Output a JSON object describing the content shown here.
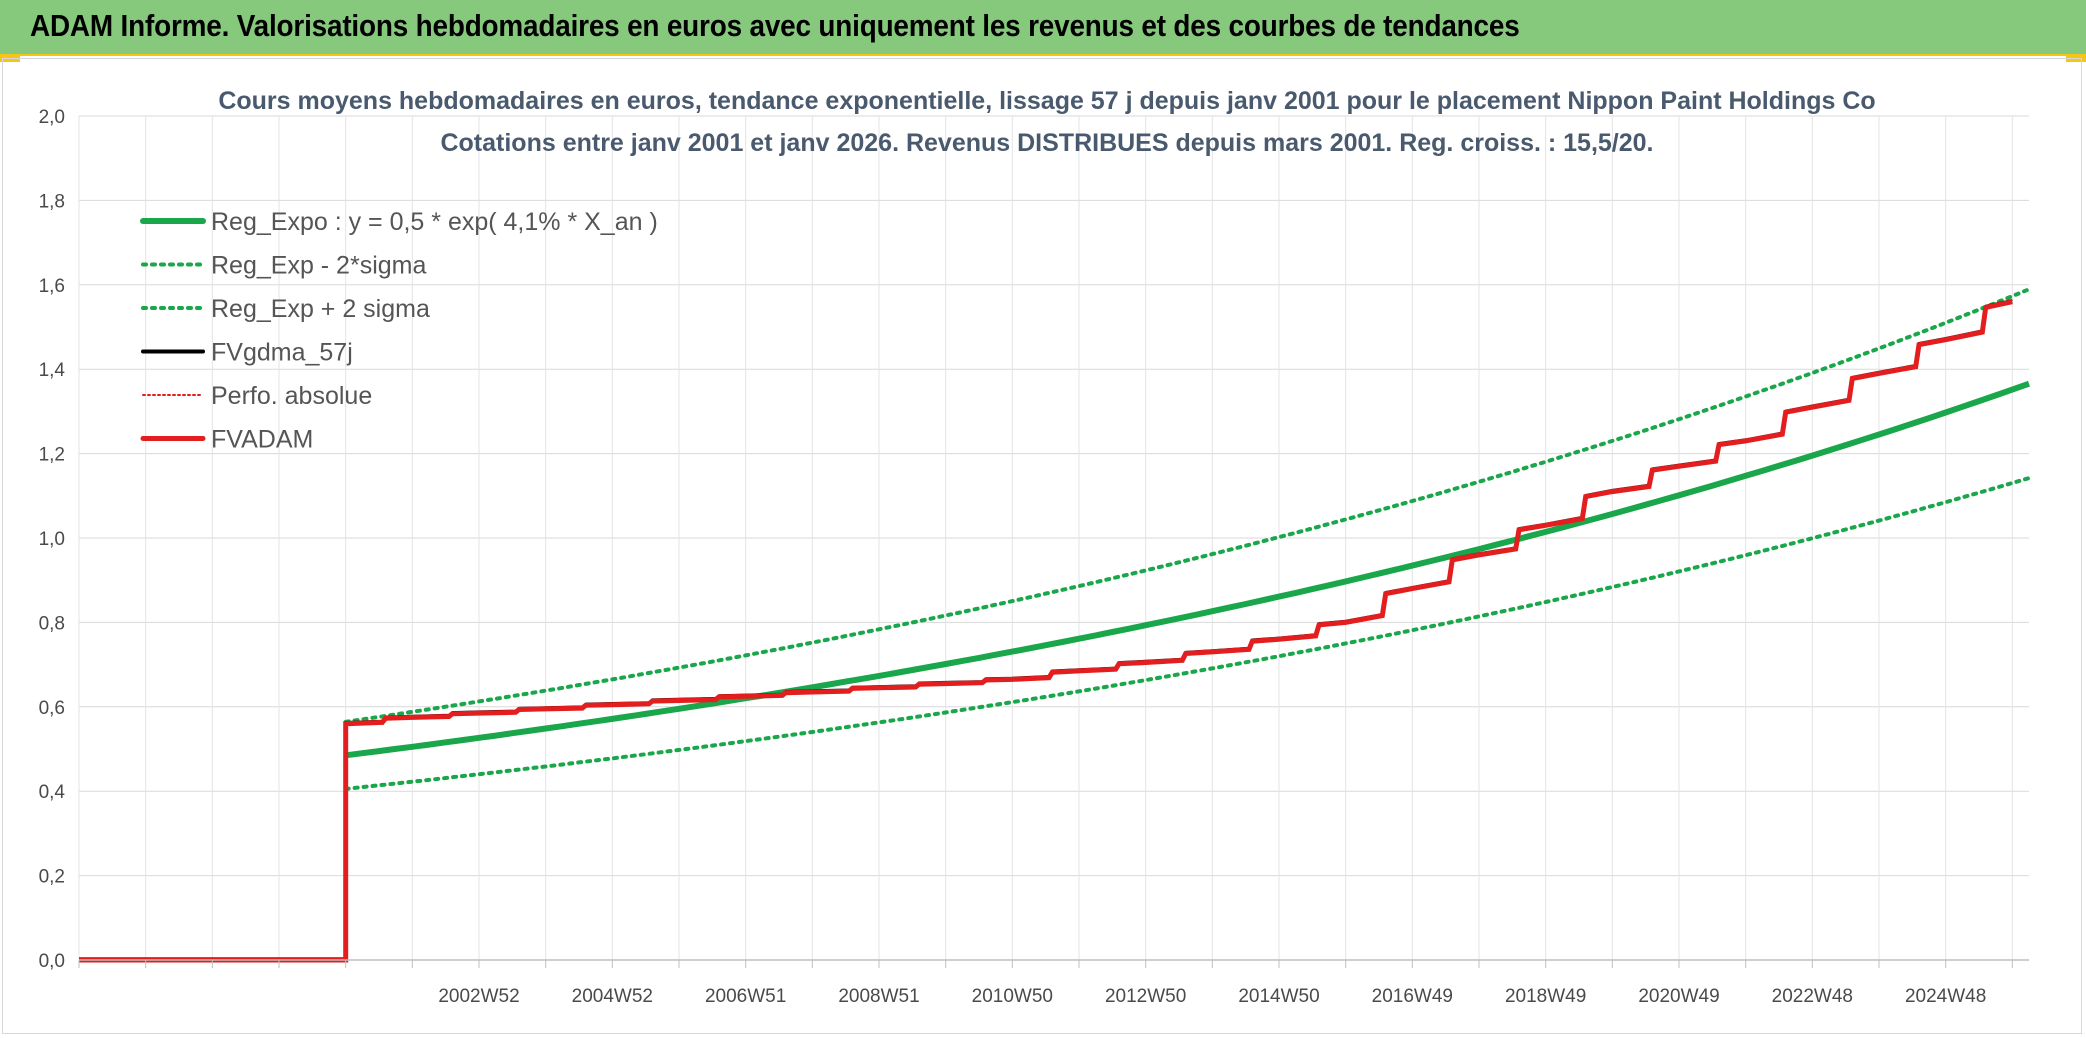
{
  "header": {
    "title": "ADAM Informe. Valorisations hebdomadaires en euros avec uniquement les revenus et des courbes de tendances"
  },
  "colors": {
    "banner": "#86c97d",
    "accent": "#f5c518",
    "green": "#1aa64a",
    "black": "#000000",
    "red": "#e41e1e"
  },
  "chart_data": {
    "type": "line",
    "title_line1": "Cours moyens hebdomadaires en euros, tendance exponentielle, lissage 57 j depuis janv 2001 pour le placement Nippon Paint Holdings Co",
    "title_line2": "Cotations entre janv 2001 et janv 2026. Revenus DISTRIBUES depuis mars 2001. Reg. croiss. : 15,5/20.",
    "x_range_years": [
      1997,
      2026.25
    ],
    "y_range": [
      0,
      2.0
    ],
    "y_ticks": [
      "0,0",
      "0,2",
      "0,4",
      "0,6",
      "0,8",
      "1,0",
      "1,2",
      "1,4",
      "1,6",
      "1,8",
      "2,0"
    ],
    "x_ticks": [
      {
        "label": "2002W52",
        "year": 2003.0
      },
      {
        "label": "2004W52",
        "year": 2005.0
      },
      {
        "label": "2006W51",
        "year": 2007.0
      },
      {
        "label": "2008W51",
        "year": 2009.0
      },
      {
        "label": "2010W50",
        "year": 2011.0
      },
      {
        "label": "2012W50",
        "year": 2013.0
      },
      {
        "label": "2014W50",
        "year": 2015.0
      },
      {
        "label": "2016W49",
        "year": 2017.0
      },
      {
        "label": "2018W49",
        "year": 2019.0
      },
      {
        "label": "2020W49",
        "year": 2021.0
      },
      {
        "label": "2022W48",
        "year": 2023.0
      },
      {
        "label": "2024W48",
        "year": 2025.0
      }
    ],
    "regression": {
      "start_year": 2001.0,
      "end_year": 2026.25,
      "a": 0.485,
      "rate": 0.041,
      "sigma_band": 0.078
    },
    "legend": [
      {
        "label": "Reg_Expo : y = 0,5 * exp( 4,1% *  X_an )",
        "style": "green-solid"
      },
      {
        "label": "Reg_Exp - 2*sigma",
        "style": "green-dotted"
      },
      {
        "label": "Reg_Exp + 2 sigma",
        "style": "green-dotted"
      },
      {
        "label": "FVgdma_57j",
        "style": "black-solid"
      },
      {
        "label": "Perfo. absolue",
        "style": "red-dotted"
      },
      {
        "label": "FVADAM",
        "style": "red-solid"
      }
    ],
    "series": [
      {
        "name": "FVADAM",
        "points": [
          [
            1997.0,
            0.0
          ],
          [
            2001.0,
            0.0
          ],
          [
            2001.0,
            0.56
          ],
          [
            2002.0,
            0.575
          ],
          [
            2003.0,
            0.585
          ],
          [
            2004.0,
            0.595
          ],
          [
            2005.0,
            0.605
          ],
          [
            2006.0,
            0.615
          ],
          [
            2007.0,
            0.625
          ],
          [
            2008.0,
            0.635
          ],
          [
            2009.0,
            0.645
          ],
          [
            2010.0,
            0.655
          ],
          [
            2011.0,
            0.665
          ],
          [
            2012.0,
            0.685
          ],
          [
            2013.0,
            0.705
          ],
          [
            2014.0,
            0.73
          ],
          [
            2015.0,
            0.76
          ],
          [
            2016.0,
            0.8
          ],
          [
            2017.0,
            0.88
          ],
          [
            2018.0,
            0.96
          ],
          [
            2019.0,
            1.03
          ],
          [
            2020.0,
            1.11
          ],
          [
            2021.0,
            1.17
          ],
          [
            2022.0,
            1.23
          ],
          [
            2023.0,
            1.31
          ],
          [
            2024.0,
            1.39
          ],
          [
            2025.0,
            1.47
          ],
          [
            2026.0,
            1.56
          ]
        ]
      }
    ]
  }
}
